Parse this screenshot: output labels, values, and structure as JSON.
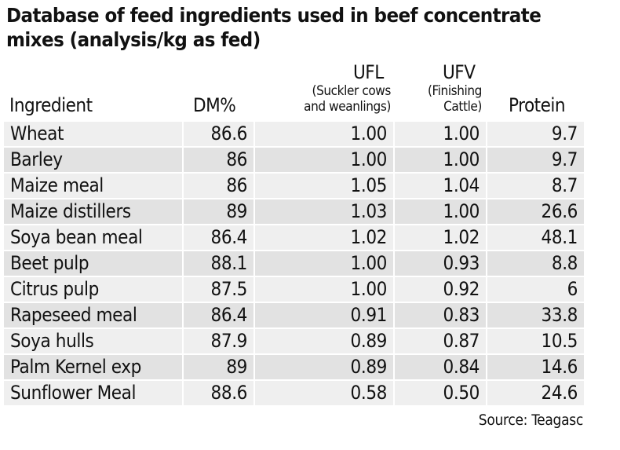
{
  "title": "Database of feed ingredients used in beef concentrate mixes (analysis/kg as fed)",
  "headers": {
    "ingredient": "Ingredient",
    "dm": "DM%",
    "ufl": "UFL",
    "ufl_sub_1": "(Suckler cows",
    "ufl_sub_2": "and weanlings)",
    "ufv": "UFV",
    "ufv_sub_1": "(Finishing",
    "ufv_sub_2": "Cattle)",
    "protein": "Protein"
  },
  "rows": [
    [
      "Wheat",
      "86.6",
      "1.00",
      "1.00",
      "9.7"
    ],
    [
      "Barley",
      "86",
      "1.00",
      "1.00",
      "9.7"
    ],
    [
      "Maize meal",
      "86",
      "1.05",
      "1.04",
      "8.7"
    ],
    [
      "Maize distillers",
      "89",
      "1.03",
      "1.00",
      "26.6"
    ],
    [
      "Soya bean meal",
      "86.4",
      "1.02",
      "1.02",
      "48.1"
    ],
    [
      "Beet pulp",
      "88.1",
      "1.00",
      "0.93",
      "8.8"
    ],
    [
      "Citrus pulp",
      "87.5",
      "1.00",
      "0.92",
      "6"
    ],
    [
      "Rapeseed meal",
      "86.4",
      "0.91",
      "0.83",
      "33.8"
    ],
    [
      "Soya hulls",
      "87.9",
      "0.89",
      "0.87",
      "10.5"
    ],
    [
      "Palm Kernel exp",
      "89",
      "0.89",
      "0.84",
      "14.6"
    ],
    [
      "Sunflower Meal",
      "88.6",
      "0.58",
      "0.50",
      "24.6"
    ]
  ],
  "source": "Source: Teagasc",
  "colors": {
    "row_light": "#efefef",
    "row_dark": "#e2e2e2",
    "text": "#111111"
  }
}
